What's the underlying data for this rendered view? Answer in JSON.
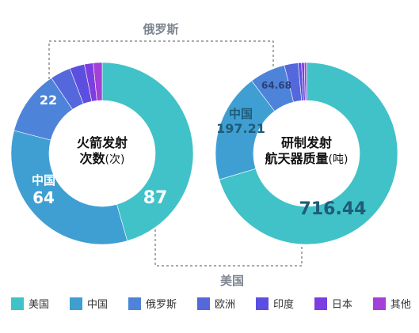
{
  "colors": {
    "美国": "#40c2c8",
    "中国": "#3f9fd3",
    "俄罗斯": "#4d84d9",
    "欧洲": "#5468dc",
    "印度": "#5c4fe0",
    "日本": "#7c3ee0",
    "其他": "#a43fd8"
  },
  "callouts": {
    "russia": "俄罗斯",
    "usa": "美国"
  },
  "chart_data": [
    {
      "type": "pie",
      "center_label": [
        "火箭发射",
        "次数"
      ],
      "center_unit": "(次)",
      "slices": [
        {
          "name": "美国",
          "value": 87,
          "label": "87"
        },
        {
          "name": "中国",
          "value": 64,
          "label": "64",
          "label_name": "中国"
        },
        {
          "name": "俄罗斯",
          "value": 22,
          "label": "22"
        },
        {
          "name": "欧洲",
          "value": 7
        },
        {
          "name": "印度",
          "value": 5
        },
        {
          "name": "日本",
          "value": 3
        },
        {
          "name": "其他",
          "value": 3
        }
      ]
    },
    {
      "type": "pie",
      "center_label": [
        "研制发射",
        "航天器质量"
      ],
      "center_unit": "(吨)",
      "slices": [
        {
          "name": "美国",
          "value": 716.44,
          "label": "716.44"
        },
        {
          "name": "中国",
          "value": 197.21,
          "label": "197.21",
          "label_name": "中国"
        },
        {
          "name": "俄罗斯",
          "value": 64.68,
          "label": "64.68"
        },
        {
          "name": "欧洲",
          "value": 25
        },
        {
          "name": "印度",
          "value": 6
        },
        {
          "name": "日本",
          "value": 5
        },
        {
          "name": "其他",
          "value": 4
        }
      ]
    }
  ],
  "legend": [
    "美国",
    "中国",
    "俄罗斯",
    "欧洲",
    "印度",
    "日本",
    "其他"
  ]
}
